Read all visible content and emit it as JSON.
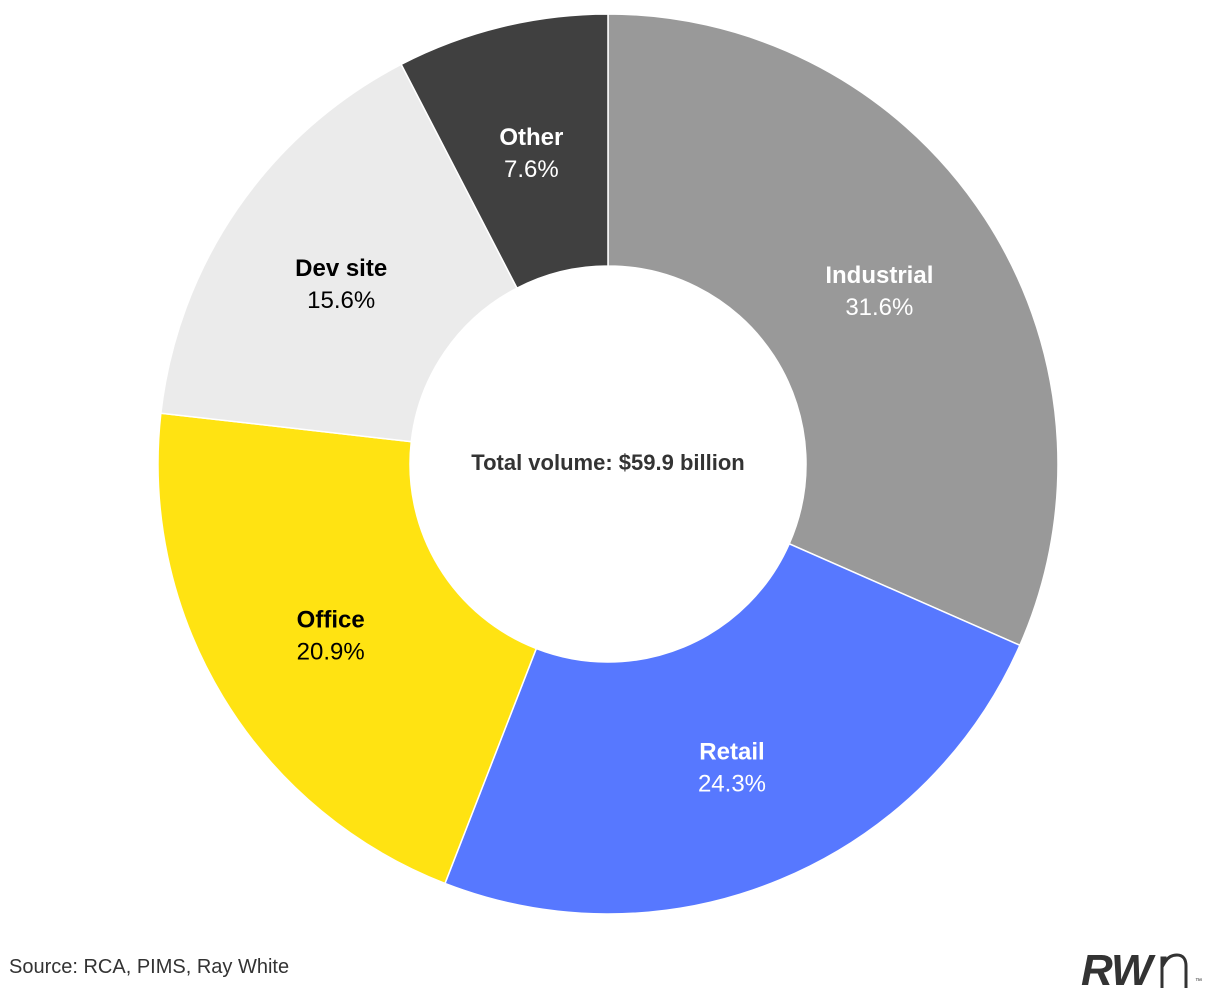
{
  "chart_data": {
    "type": "pie",
    "style": "donut",
    "center_label": "Total volume: $59.9 billion",
    "slices": [
      {
        "label": "Industrial",
        "value": 31.6,
        "display": "31.6%",
        "color": "#999999",
        "text_color": "#ffffff"
      },
      {
        "label": "Retail",
        "value": 24.3,
        "display": "24.3%",
        "color": "#5778FF",
        "text_color": "#ffffff"
      },
      {
        "label": "Office",
        "value": 20.9,
        "display": "20.9%",
        "color": "#FFE312",
        "text_color": "#000000"
      },
      {
        "label": "Dev site",
        "value": 15.6,
        "display": "15.6%",
        "color": "#EBEBEB",
        "text_color": "#000000"
      },
      {
        "label": "Other",
        "value": 7.6,
        "display": "7.6%",
        "color": "#404040",
        "text_color": "#ffffff"
      }
    ]
  },
  "footer": {
    "source": "Source: RCA, PIMS, Ray White",
    "logo_text": "RW",
    "logo_tm": "™"
  }
}
